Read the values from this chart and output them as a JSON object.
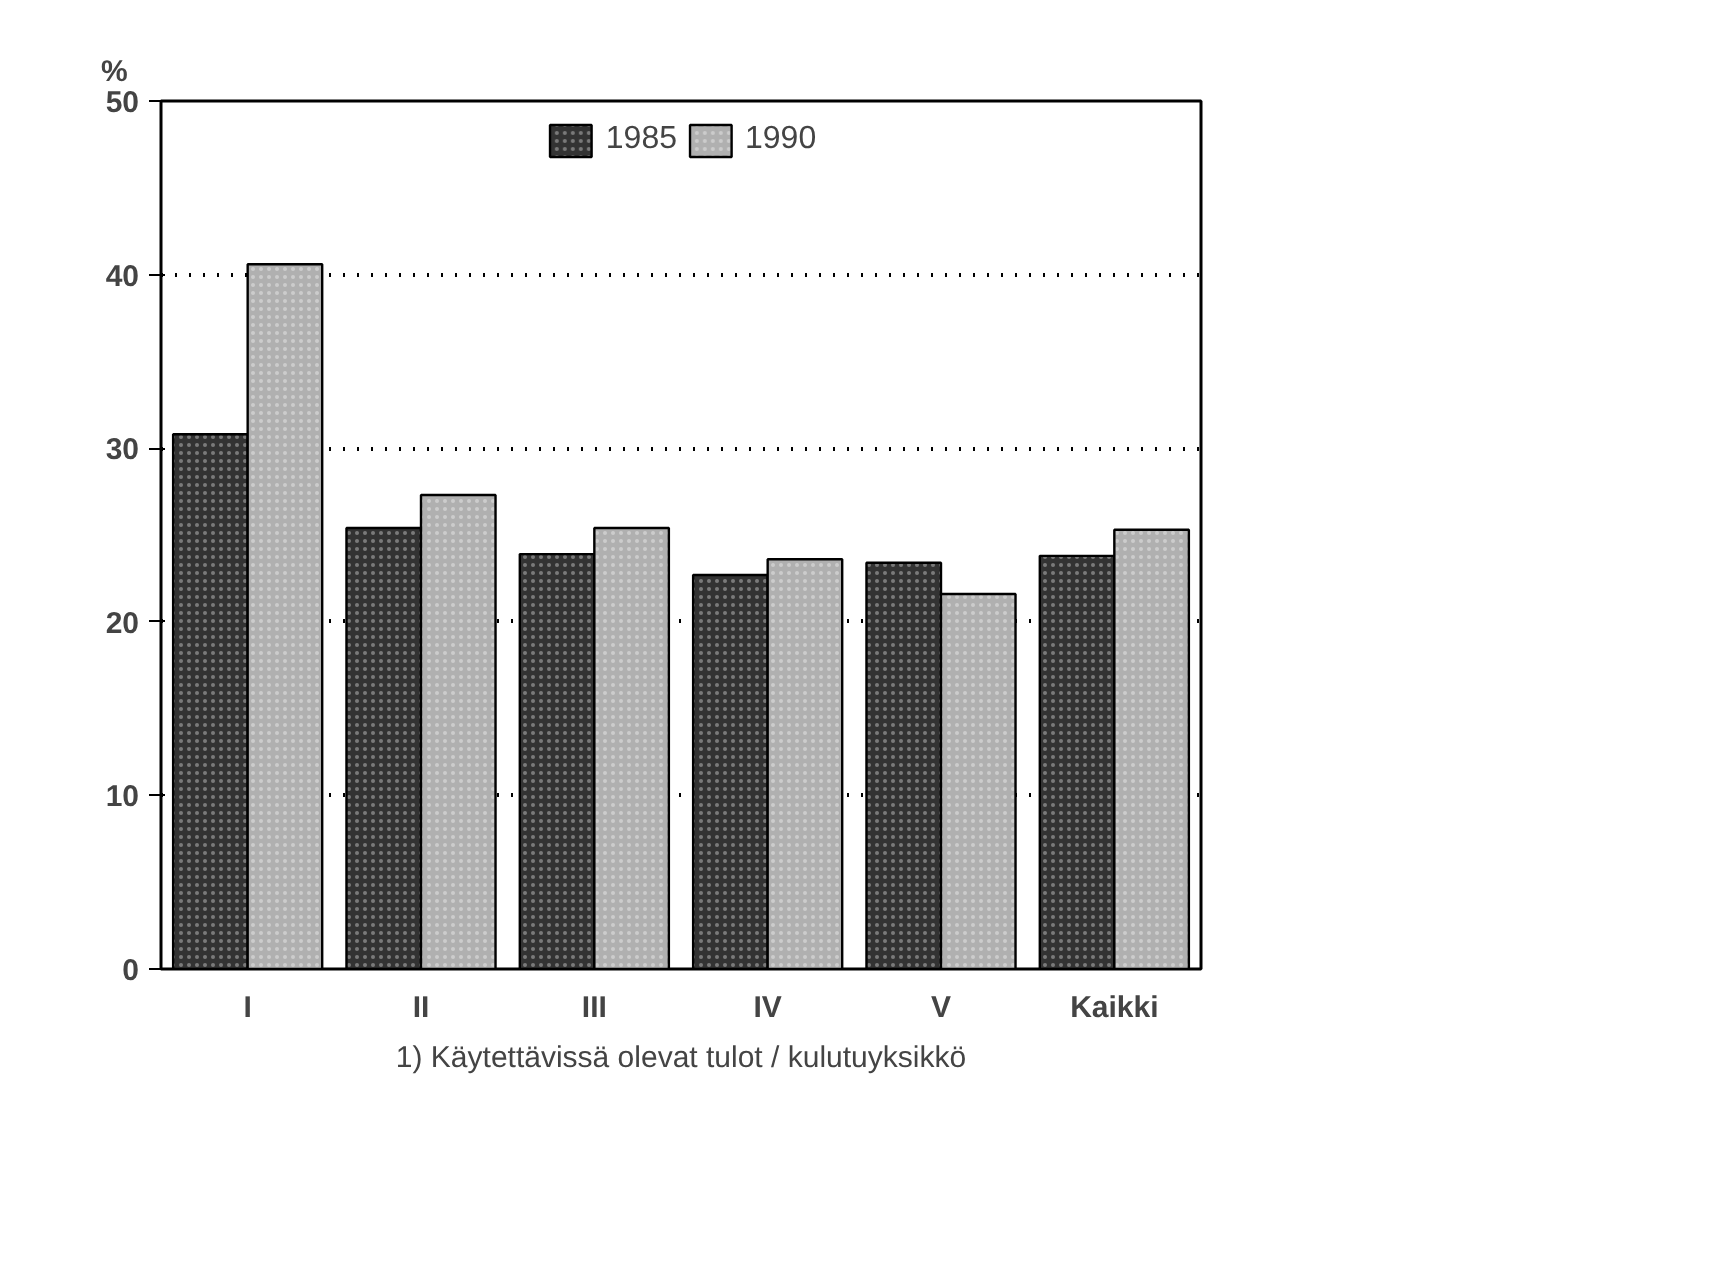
{
  "chart_data": {
    "type": "bar",
    "ylabel": "%",
    "xlabel": "1) Käytettävissä olevat tulot / kulutuyksikkö",
    "categories": [
      "I",
      "II",
      "III",
      "IV",
      "V",
      "Kaikki"
    ],
    "series": [
      {
        "name": "1985",
        "color": "#333333",
        "values": [
          30.8,
          25.4,
          23.9,
          22.7,
          23.4,
          23.8
        ]
      },
      {
        "name": "1990",
        "color": "#b0b0b0",
        "values": [
          40.6,
          27.3,
          25.4,
          23.6,
          21.6,
          25.3
        ]
      }
    ],
    "ylim": [
      0,
      50
    ],
    "yticks": [
      0,
      10,
      20,
      30,
      40,
      50
    ],
    "grid": "y",
    "legend": "top"
  }
}
